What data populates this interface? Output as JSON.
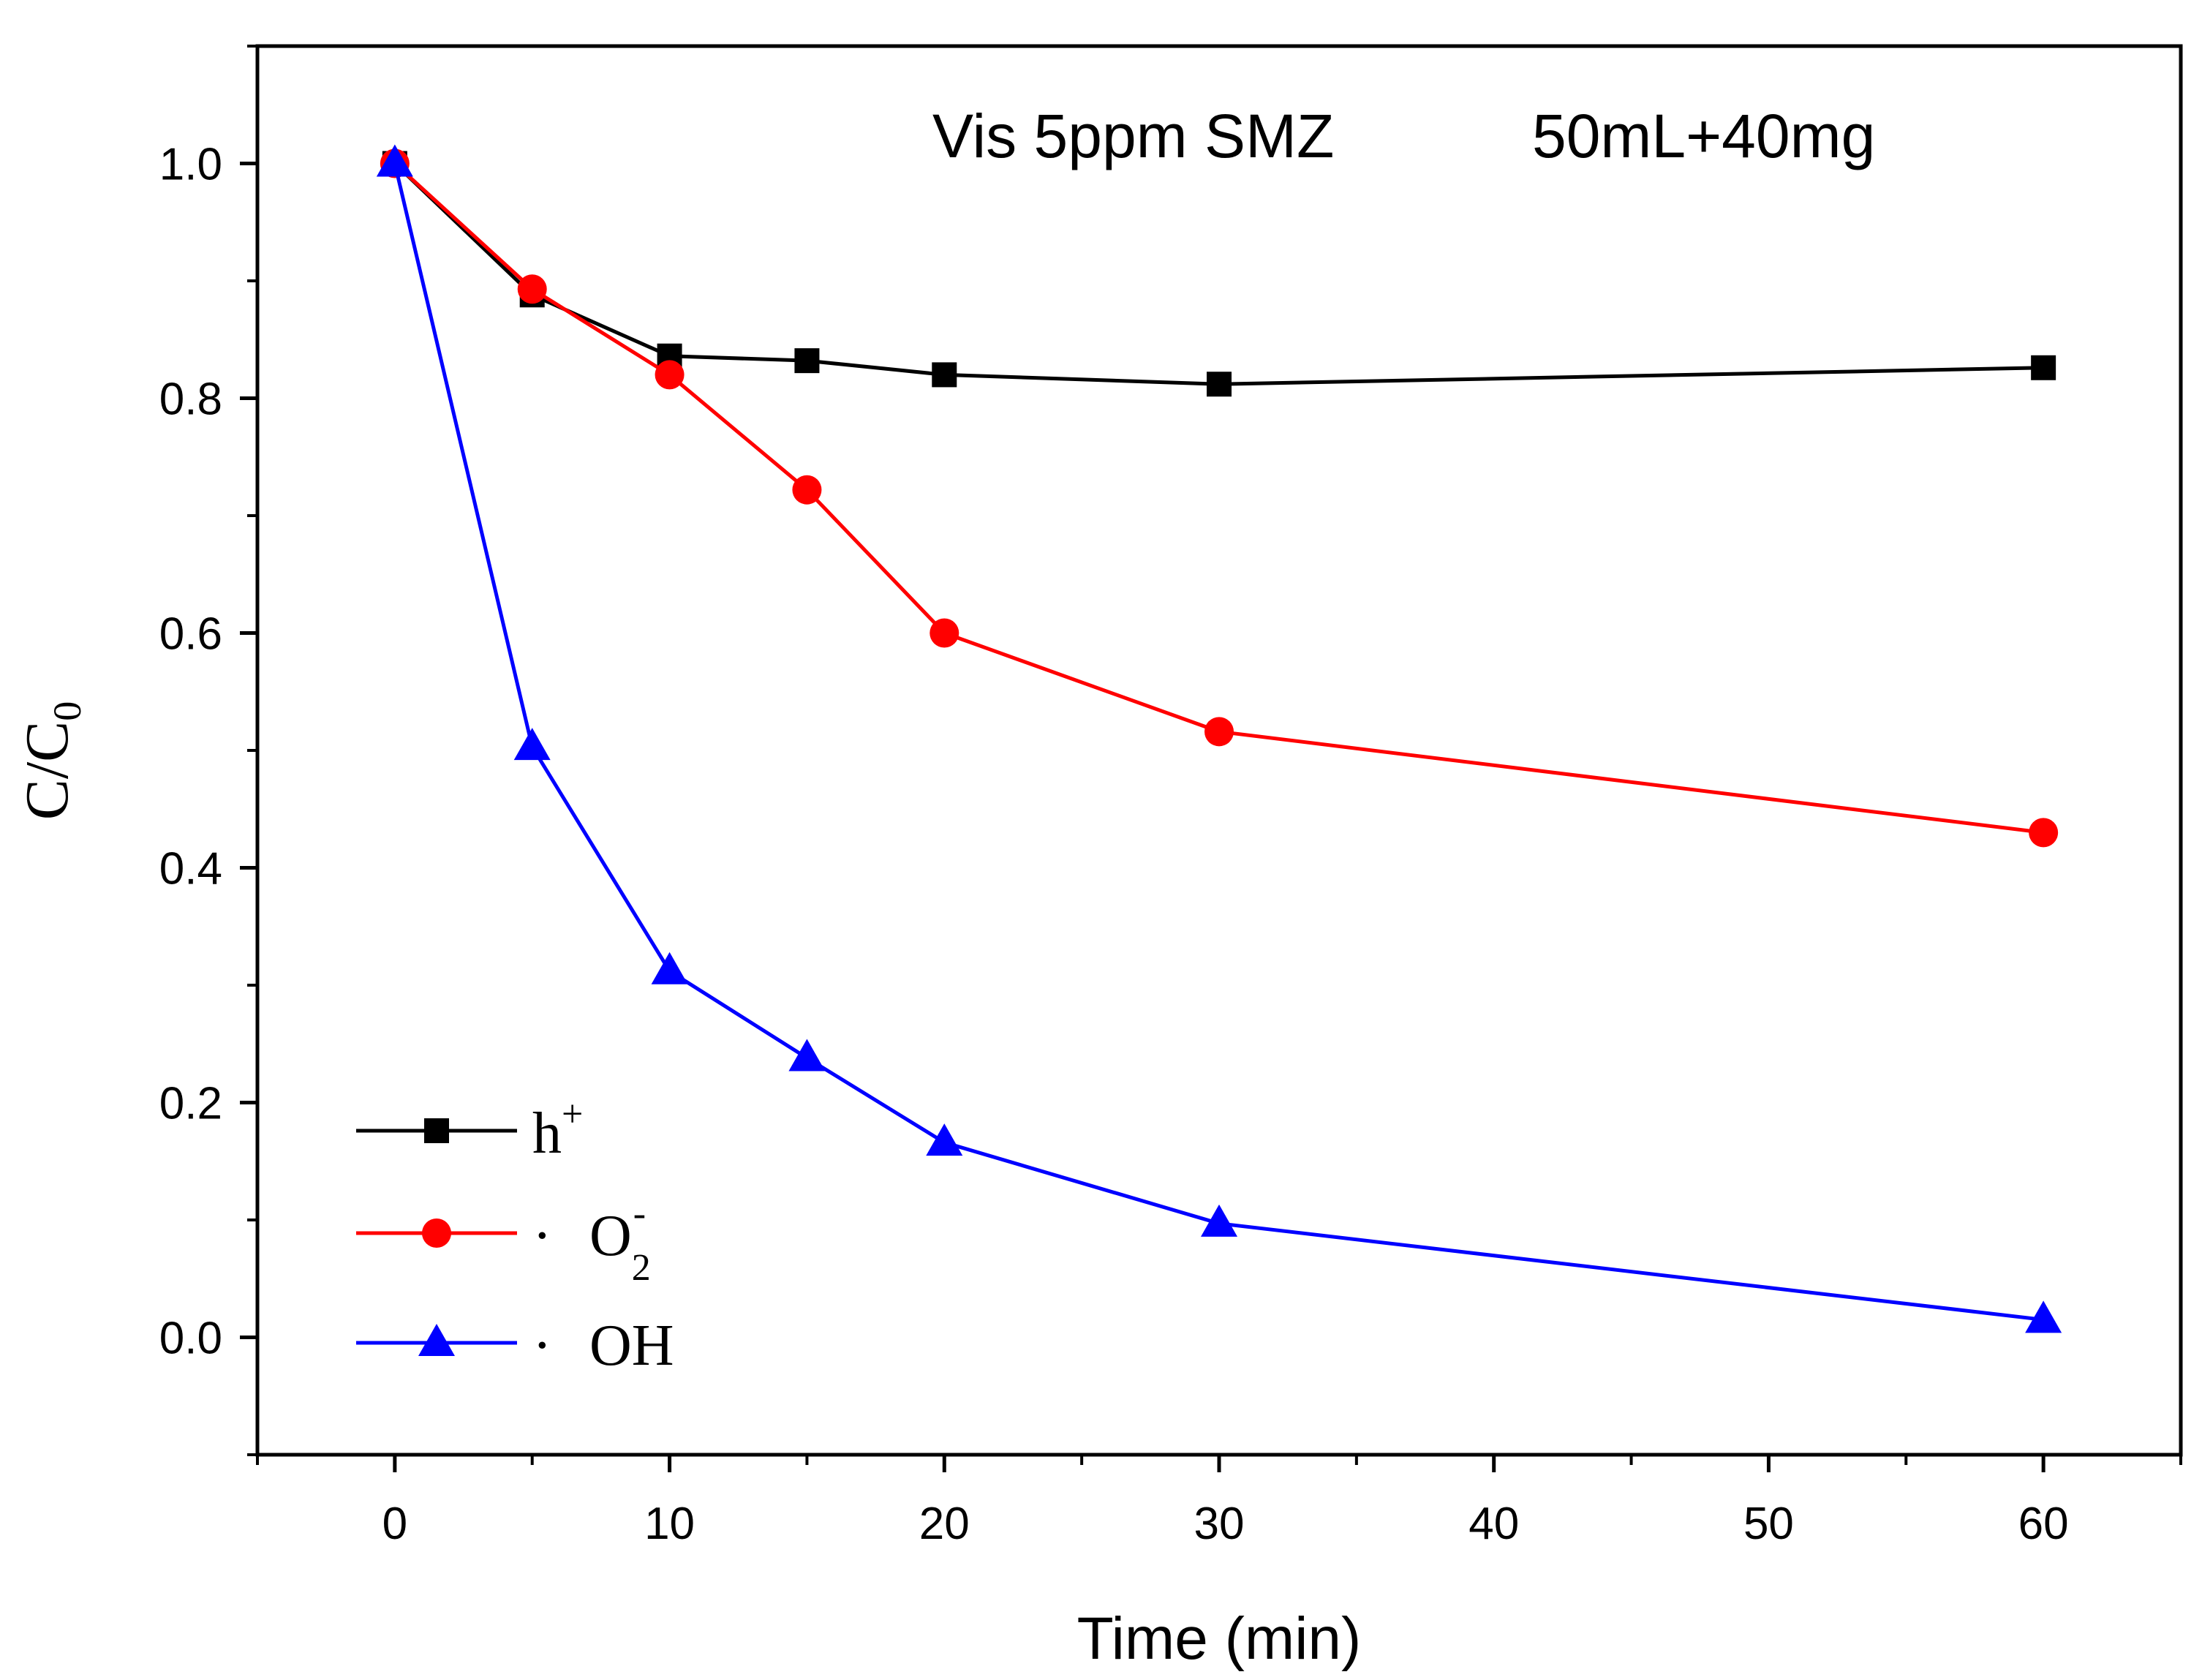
{
  "chart_data": {
    "type": "line",
    "xlabel": "Time (min)",
    "ylabel": {
      "base": "C/C",
      "subscript": "0"
    },
    "xlim": [
      -5,
      65
    ],
    "ylim": [
      -0.1,
      1.1
    ],
    "xticks": [
      0,
      10,
      20,
      30,
      40,
      50,
      60
    ],
    "yticks": [
      0.0,
      0.2,
      0.4,
      0.6,
      0.8,
      1.0
    ],
    "xtick_labels": [
      "0",
      "10",
      "20",
      "30",
      "40",
      "50",
      "60"
    ],
    "ytick_labels": [
      "0.0",
      "0.2",
      "0.4",
      "0.6",
      "0.8",
      "1.0"
    ],
    "annotations": [
      "Vis 5ppm SMZ",
      "50mL+40mg"
    ],
    "legend_position": "bottom-left",
    "series": [
      {
        "name": "h+",
        "legend": {
          "dot": "",
          "base": "h",
          "sub": "",
          "sup": "+"
        },
        "marker": "square",
        "color": "#000000",
        "x": [
          0,
          5,
          10,
          15,
          20,
          30,
          60
        ],
        "y": [
          1.0,
          0.888,
          0.836,
          0.832,
          0.82,
          0.812,
          0.826
        ]
      },
      {
        "name": "·O2-",
        "legend": {
          "dot": "·",
          "base": "O",
          "sub": "2",
          "sup": "-"
        },
        "marker": "circle",
        "color": "#ff0000",
        "x": [
          0,
          5,
          10,
          15,
          20,
          30,
          60
        ],
        "y": [
          1.0,
          0.893,
          0.82,
          0.722,
          0.6,
          0.516,
          0.43
        ]
      },
      {
        "name": "·OH",
        "legend": {
          "dot": "·",
          "base": "OH",
          "sub": "",
          "sup": ""
        },
        "marker": "triangle",
        "color": "#0000ff",
        "x": [
          0,
          5,
          10,
          15,
          20,
          30,
          60
        ],
        "y": [
          1.0,
          0.503,
          0.312,
          0.238,
          0.166,
          0.097,
          0.015
        ]
      }
    ]
  }
}
